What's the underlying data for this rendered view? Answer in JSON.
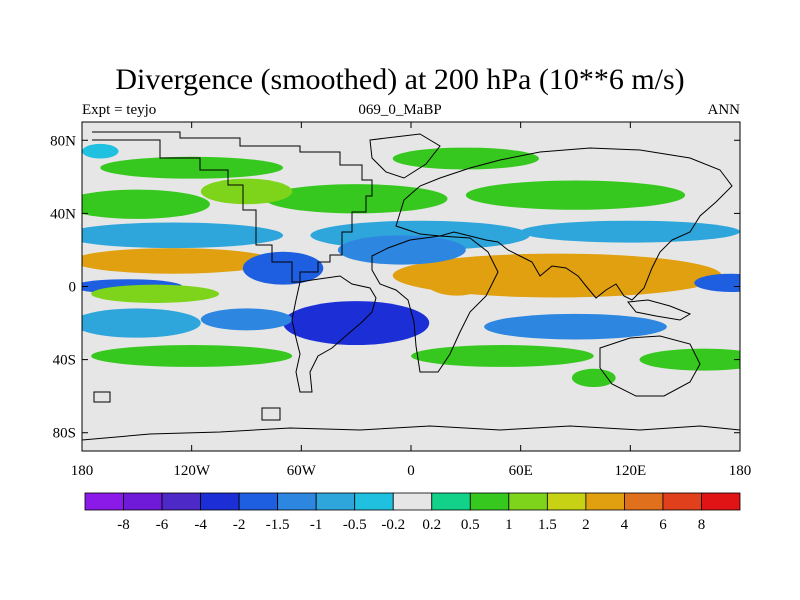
{
  "chart_data": {
    "type": "heatmap",
    "title": "Divergence (smoothed) at 200 hPa (10**6 m/s)",
    "subtitle_left": "Expt = teyjo",
    "subtitle_center": "069_0_MaBP",
    "subtitle_right": "ANN",
    "xlim": [
      -180,
      180
    ],
    "ylim": [
      -90,
      90
    ],
    "x_ticks": [
      {
        "value": -180,
        "label": "180"
      },
      {
        "value": -120,
        "label": "120W"
      },
      {
        "value": -60,
        "label": "60W"
      },
      {
        "value": 0,
        "label": "0"
      },
      {
        "value": 60,
        "label": "60E"
      },
      {
        "value": 120,
        "label": "120E"
      },
      {
        "value": 180,
        "label": "180"
      }
    ],
    "y_ticks": [
      {
        "value": 80,
        "label": "80N"
      },
      {
        "value": 40,
        "label": "40N"
      },
      {
        "value": 0,
        "label": "0"
      },
      {
        "value": -40,
        "label": "40S"
      },
      {
        "value": -80,
        "label": "80S"
      }
    ],
    "colorbar": {
      "levels": [
        "-8",
        "-6",
        "-4",
        "-2",
        "-1.5",
        "-1",
        "-0.5",
        "-0.2",
        "0.2",
        "0.5",
        "1",
        "1.5",
        "2",
        "4",
        "6",
        "8"
      ],
      "colors": [
        "#8b1ae8",
        "#6e1ad8",
        "#4d2ac8",
        "#1c2fd6",
        "#1e5ee0",
        "#2d86e0",
        "#2ea6dc",
        "#1fc0e0",
        "#e6e6e6",
        "#12d28a",
        "#36c81e",
        "#7ed41a",
        "#c8d214",
        "#e0a010",
        "#e0701c",
        "#e0401c",
        "#e01414"
      ]
    },
    "field_blobs": [
      {
        "lon": -130,
        "lat": 14,
        "rx": 55,
        "ry": 7,
        "value": 2
      },
      {
        "lon": 80,
        "lat": 6,
        "rx": 90,
        "ry": 12,
        "value": 3
      },
      {
        "lon": 25,
        "lat": 4,
        "rx": 18,
        "ry": 9,
        "value": 2.5
      },
      {
        "lon": -155,
        "lat": 0,
        "rx": 30,
        "ry": 4,
        "value": -2
      },
      {
        "lon": 175,
        "lat": 2,
        "rx": 20,
        "ry": 5,
        "value": -2
      },
      {
        "lon": -140,
        "lat": -4,
        "rx": 35,
        "ry": 5,
        "value": 1
      },
      {
        "lon": -130,
        "lat": 28,
        "rx": 60,
        "ry": 7,
        "value": -1
      },
      {
        "lon": 5,
        "lat": 28,
        "rx": 60,
        "ry": 8,
        "value": -1
      },
      {
        "lon": 120,
        "lat": 30,
        "rx": 60,
        "ry": 6,
        "value": -1
      },
      {
        "lon": -70,
        "lat": 10,
        "rx": 22,
        "ry": 9,
        "value": -2
      },
      {
        "lon": -5,
        "lat": 20,
        "rx": 35,
        "ry": 8,
        "value": -1.5
      },
      {
        "lon": -30,
        "lat": -20,
        "rx": 40,
        "ry": 12,
        "value": -3
      },
      {
        "lon": 90,
        "lat": -22,
        "rx": 50,
        "ry": 7,
        "value": -1.5
      },
      {
        "lon": -150,
        "lat": -20,
        "rx": 35,
        "ry": 8,
        "value": -1
      },
      {
        "lon": -90,
        "lat": -18,
        "rx": 25,
        "ry": 6,
        "value": -1.5
      },
      {
        "lon": -150,
        "lat": 45,
        "rx": 40,
        "ry": 8,
        "value": 0.5
      },
      {
        "lon": -30,
        "lat": 48,
        "rx": 50,
        "ry": 8,
        "value": 0.5
      },
      {
        "lon": 90,
        "lat": 50,
        "rx": 60,
        "ry": 8,
        "value": 0.5
      },
      {
        "lon": -90,
        "lat": 52,
        "rx": 25,
        "ry": 7,
        "value": 1
      },
      {
        "lon": -120,
        "lat": -38,
        "rx": 55,
        "ry": 6,
        "value": 0.5
      },
      {
        "lon": 50,
        "lat": -38,
        "rx": 50,
        "ry": 6,
        "value": 0.5
      },
      {
        "lon": 160,
        "lat": -40,
        "rx": 35,
        "ry": 6,
        "value": 0.5
      },
      {
        "lon": -120,
        "lat": 65,
        "rx": 50,
        "ry": 6,
        "value": 0.5
      },
      {
        "lon": 30,
        "lat": 70,
        "rx": 40,
        "ry": 6,
        "value": 0.5
      },
      {
        "lon": -170,
        "lat": 74,
        "rx": 10,
        "ry": 4,
        "value": -0.5
      },
      {
        "lon": 100,
        "lat": -50,
        "rx": 12,
        "ry": 5,
        "value": 0.5
      }
    ]
  }
}
